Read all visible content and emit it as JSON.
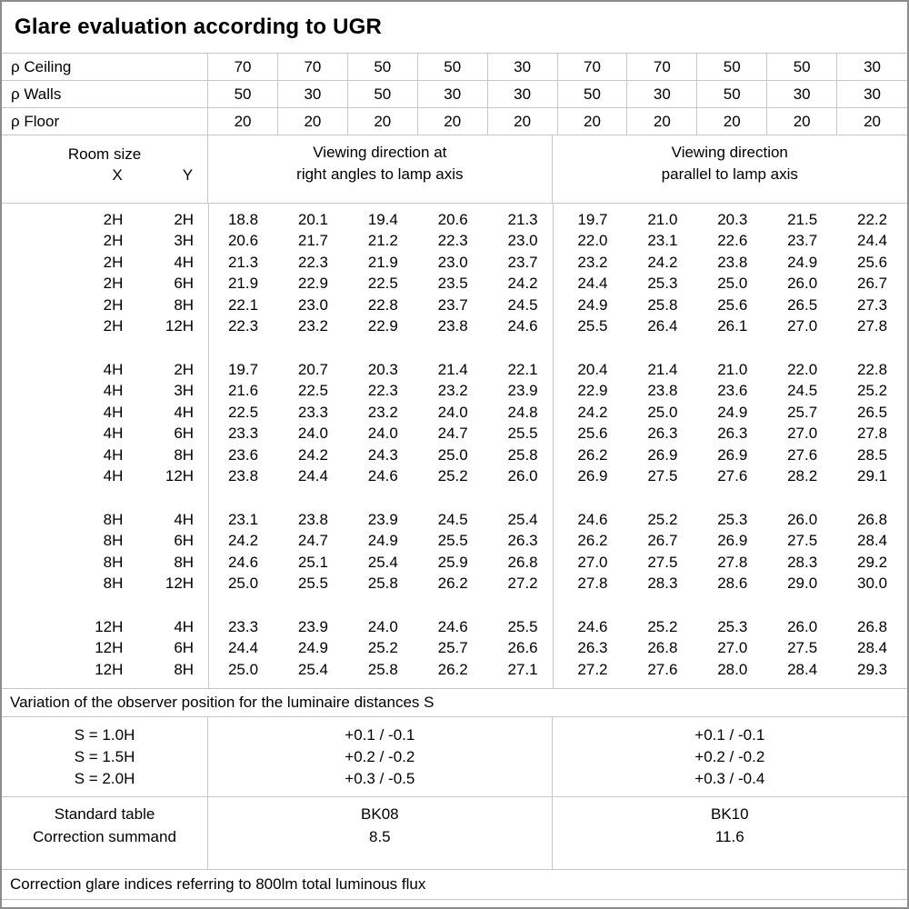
{
  "title": "Glare evaluation according to UGR",
  "reflectance": {
    "rows": [
      {
        "label": "ρ Ceiling",
        "values": [
          "70",
          "70",
          "50",
          "50",
          "30",
          "70",
          "70",
          "50",
          "50",
          "30"
        ]
      },
      {
        "label": "ρ Walls",
        "values": [
          "50",
          "30",
          "50",
          "30",
          "30",
          "50",
          "30",
          "50",
          "30",
          "30"
        ]
      },
      {
        "label": "ρ Floor",
        "values": [
          "20",
          "20",
          "20",
          "20",
          "20",
          "20",
          "20",
          "20",
          "20",
          "20"
        ]
      }
    ]
  },
  "room_size": {
    "title": "Room size",
    "x_label": "X",
    "y_label": "Y"
  },
  "viewing_headers": {
    "right_angles": [
      "Viewing direction at",
      "right angles to lamp axis"
    ],
    "parallel": [
      "Viewing direction",
      "parallel to lamp axis"
    ]
  },
  "groups": [
    {
      "rows": [
        {
          "x": "2H",
          "y": "2H",
          "values": [
            "18.8",
            "20.1",
            "19.4",
            "20.6",
            "21.3",
            "19.7",
            "21.0",
            "20.3",
            "21.5",
            "22.2"
          ]
        },
        {
          "x": "2H",
          "y": "3H",
          "values": [
            "20.6",
            "21.7",
            "21.2",
            "22.3",
            "23.0",
            "22.0",
            "23.1",
            "22.6",
            "23.7",
            "24.4"
          ]
        },
        {
          "x": "2H",
          "y": "4H",
          "values": [
            "21.3",
            "22.3",
            "21.9",
            "23.0",
            "23.7",
            "23.2",
            "24.2",
            "23.8",
            "24.9",
            "25.6"
          ]
        },
        {
          "x": "2H",
          "y": "6H",
          "values": [
            "21.9",
            "22.9",
            "22.5",
            "23.5",
            "24.2",
            "24.4",
            "25.3",
            "25.0",
            "26.0",
            "26.7"
          ]
        },
        {
          "x": "2H",
          "y": "8H",
          "values": [
            "22.1",
            "23.0",
            "22.8",
            "23.7",
            "24.5",
            "24.9",
            "25.8",
            "25.6",
            "26.5",
            "27.3"
          ]
        },
        {
          "x": "2H",
          "y": "12H",
          "values": [
            "22.3",
            "23.2",
            "22.9",
            "23.8",
            "24.6",
            "25.5",
            "26.4",
            "26.1",
            "27.0",
            "27.8"
          ]
        }
      ]
    },
    {
      "rows": [
        {
          "x": "4H",
          "y": "2H",
          "values": [
            "19.7",
            "20.7",
            "20.3",
            "21.4",
            "22.1",
            "20.4",
            "21.4",
            "21.0",
            "22.0",
            "22.8"
          ]
        },
        {
          "x": "4H",
          "y": "3H",
          "values": [
            "21.6",
            "22.5",
            "22.3",
            "23.2",
            "23.9",
            "22.9",
            "23.8",
            "23.6",
            "24.5",
            "25.2"
          ]
        },
        {
          "x": "4H",
          "y": "4H",
          "values": [
            "22.5",
            "23.3",
            "23.2",
            "24.0",
            "24.8",
            "24.2",
            "25.0",
            "24.9",
            "25.7",
            "26.5"
          ]
        },
        {
          "x": "4H",
          "y": "6H",
          "values": [
            "23.3",
            "24.0",
            "24.0",
            "24.7",
            "25.5",
            "25.6",
            "26.3",
            "26.3",
            "27.0",
            "27.8"
          ]
        },
        {
          "x": "4H",
          "y": "8H",
          "values": [
            "23.6",
            "24.2",
            "24.3",
            "25.0",
            "25.8",
            "26.2",
            "26.9",
            "26.9",
            "27.6",
            "28.5"
          ]
        },
        {
          "x": "4H",
          "y": "12H",
          "values": [
            "23.8",
            "24.4",
            "24.6",
            "25.2",
            "26.0",
            "26.9",
            "27.5",
            "27.6",
            "28.2",
            "29.1"
          ]
        }
      ]
    },
    {
      "rows": [
        {
          "x": "8H",
          "y": "4H",
          "values": [
            "23.1",
            "23.8",
            "23.9",
            "24.5",
            "25.4",
            "24.6",
            "25.2",
            "25.3",
            "26.0",
            "26.8"
          ]
        },
        {
          "x": "8H",
          "y": "6H",
          "values": [
            "24.2",
            "24.7",
            "24.9",
            "25.5",
            "26.3",
            "26.2",
            "26.7",
            "26.9",
            "27.5",
            "28.4"
          ]
        },
        {
          "x": "8H",
          "y": "8H",
          "values": [
            "24.6",
            "25.1",
            "25.4",
            "25.9",
            "26.8",
            "27.0",
            "27.5",
            "27.8",
            "28.3",
            "29.2"
          ]
        },
        {
          "x": "8H",
          "y": "12H",
          "values": [
            "25.0",
            "25.5",
            "25.8",
            "26.2",
            "27.2",
            "27.8",
            "28.3",
            "28.6",
            "29.0",
            "30.0"
          ]
        }
      ]
    },
    {
      "rows": [
        {
          "x": "12H",
          "y": "4H",
          "values": [
            "23.3",
            "23.9",
            "24.0",
            "24.6",
            "25.5",
            "24.6",
            "25.2",
            "25.3",
            "26.0",
            "26.8"
          ]
        },
        {
          "x": "12H",
          "y": "6H",
          "values": [
            "24.4",
            "24.9",
            "25.2",
            "25.7",
            "26.6",
            "26.3",
            "26.8",
            "27.0",
            "27.5",
            "28.4"
          ]
        },
        {
          "x": "12H",
          "y": "8H",
          "values": [
            "25.0",
            "25.4",
            "25.8",
            "26.2",
            "27.1",
            "27.2",
            "27.6",
            "28.0",
            "28.4",
            "29.3"
          ]
        }
      ]
    }
  ],
  "variation_heading": "Variation of the observer position for the luminaire distances S",
  "variation": {
    "labels": [
      "S = 1.0H",
      "S = 1.5H",
      "S = 2.0H"
    ],
    "right_angles": [
      "+0.1 / -0.1",
      "+0.2 / -0.2",
      "+0.3 / -0.5"
    ],
    "parallel": [
      "+0.1 / -0.1",
      "+0.2 / -0.2",
      "+0.3 / -0.4"
    ]
  },
  "summary": {
    "rows": [
      {
        "label": "Standard table",
        "right_angles": "BK08",
        "parallel": "BK10"
      },
      {
        "label": "Correction summand",
        "right_angles": "8.5",
        "parallel": "11.6"
      }
    ]
  },
  "footnote": "Correction glare indices referring to 800lm total luminous flux"
}
